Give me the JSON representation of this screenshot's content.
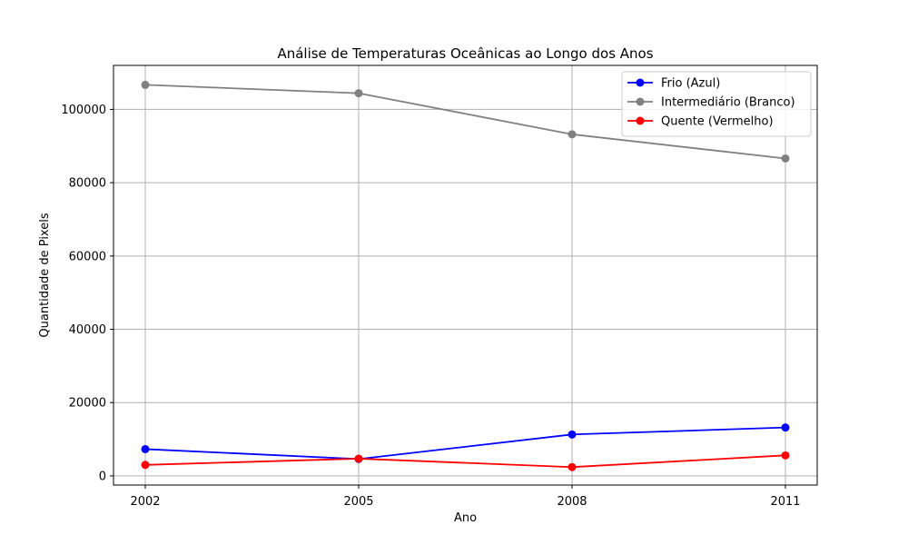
{
  "chart_data": {
    "type": "line",
    "title": "Análise de Temperaturas Oceânicas ao Longo dos Anos",
    "xlabel": "Ano",
    "ylabel": "Quantidade de Pixels",
    "x": [
      "2002",
      "2005",
      "2008",
      "2011"
    ],
    "ylim": [
      -2500,
      112000
    ],
    "yticks": [
      0,
      20000,
      40000,
      60000,
      80000,
      100000
    ],
    "grid": true,
    "legend": "top-right",
    "series": [
      {
        "name": "Frio (Azul)",
        "color": "#0000ff",
        "values": [
          7300,
          4600,
          11300,
          13200
        ]
      },
      {
        "name": "Intermediário (Branco)",
        "color": "#808080",
        "values": [
          106700,
          104400,
          93200,
          86600
        ]
      },
      {
        "name": "Quente (Vermelho)",
        "color": "#ff0000",
        "values": [
          3000,
          4700,
          2400,
          5600
        ]
      }
    ]
  }
}
